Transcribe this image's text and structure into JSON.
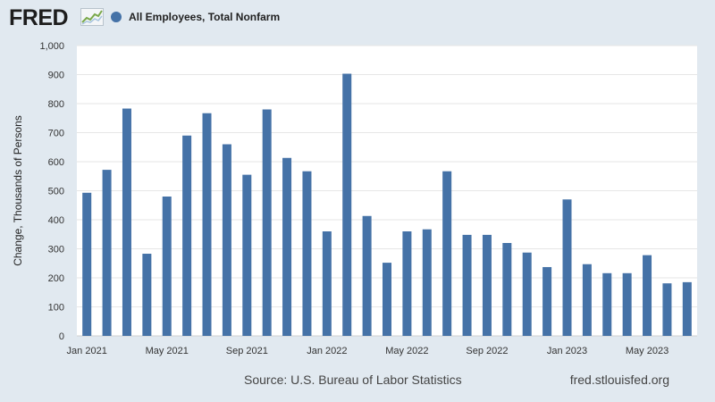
{
  "logo": {
    "text": "FRED"
  },
  "legend": {
    "label": "All Employees, Total Nonfarm",
    "color": "#4572a7"
  },
  "footer": {
    "source": "Source: U.S. Bureau of Labor Statistics",
    "site": "fred.stlouisfed.org"
  },
  "chart_data": {
    "type": "bar",
    "title": "",
    "xlabel": "",
    "ylabel": "Change, Thousands of Persons",
    "ylim": [
      0,
      1000
    ],
    "yticks": [
      0,
      100,
      200,
      300,
      400,
      500,
      600,
      700,
      800,
      900,
      1000
    ],
    "ytick_labels": [
      "0",
      "100",
      "200",
      "300",
      "400",
      "500",
      "600",
      "700",
      "800",
      "900",
      "1,000"
    ],
    "grid": true,
    "bar_color": "#4572a7",
    "categories": [
      "Jan 2021",
      "Feb 2021",
      "Mar 2021",
      "Apr 2021",
      "May 2021",
      "Jun 2021",
      "Jul 2021",
      "Aug 2021",
      "Sep 2021",
      "Oct 2021",
      "Nov 2021",
      "Dec 2021",
      "Jan 2022",
      "Feb 2022",
      "Mar 2022",
      "Apr 2022",
      "May 2022",
      "Jun 2022",
      "Jul 2022",
      "Aug 2022",
      "Sep 2022",
      "Oct 2022",
      "Nov 2022",
      "Dec 2022",
      "Jan 2023",
      "Feb 2023",
      "Mar 2023",
      "Apr 2023",
      "May 2023",
      "Jun 2023",
      "Jul 2023"
    ],
    "xtick_labels": [
      {
        "index": 0,
        "label": "Jan 2021"
      },
      {
        "index": 4,
        "label": "May 2021"
      },
      {
        "index": 8,
        "label": "Sep 2021"
      },
      {
        "index": 12,
        "label": "Jan 2022"
      },
      {
        "index": 16,
        "label": "May 2022"
      },
      {
        "index": 20,
        "label": "Sep 2022"
      },
      {
        "index": 24,
        "label": "Jan 2023"
      },
      {
        "index": 28,
        "label": "May 2023"
      }
    ],
    "series": [
      {
        "name": "All Employees, Total Nonfarm",
        "values": [
          493,
          572,
          783,
          283,
          480,
          690,
          767,
          660,
          555,
          780,
          613,
          567,
          360,
          903,
          413,
          252,
          360,
          367,
          567,
          348,
          348,
          320,
          287,
          237,
          470,
          247,
          216,
          216,
          278,
          181,
          185
        ]
      }
    ]
  }
}
